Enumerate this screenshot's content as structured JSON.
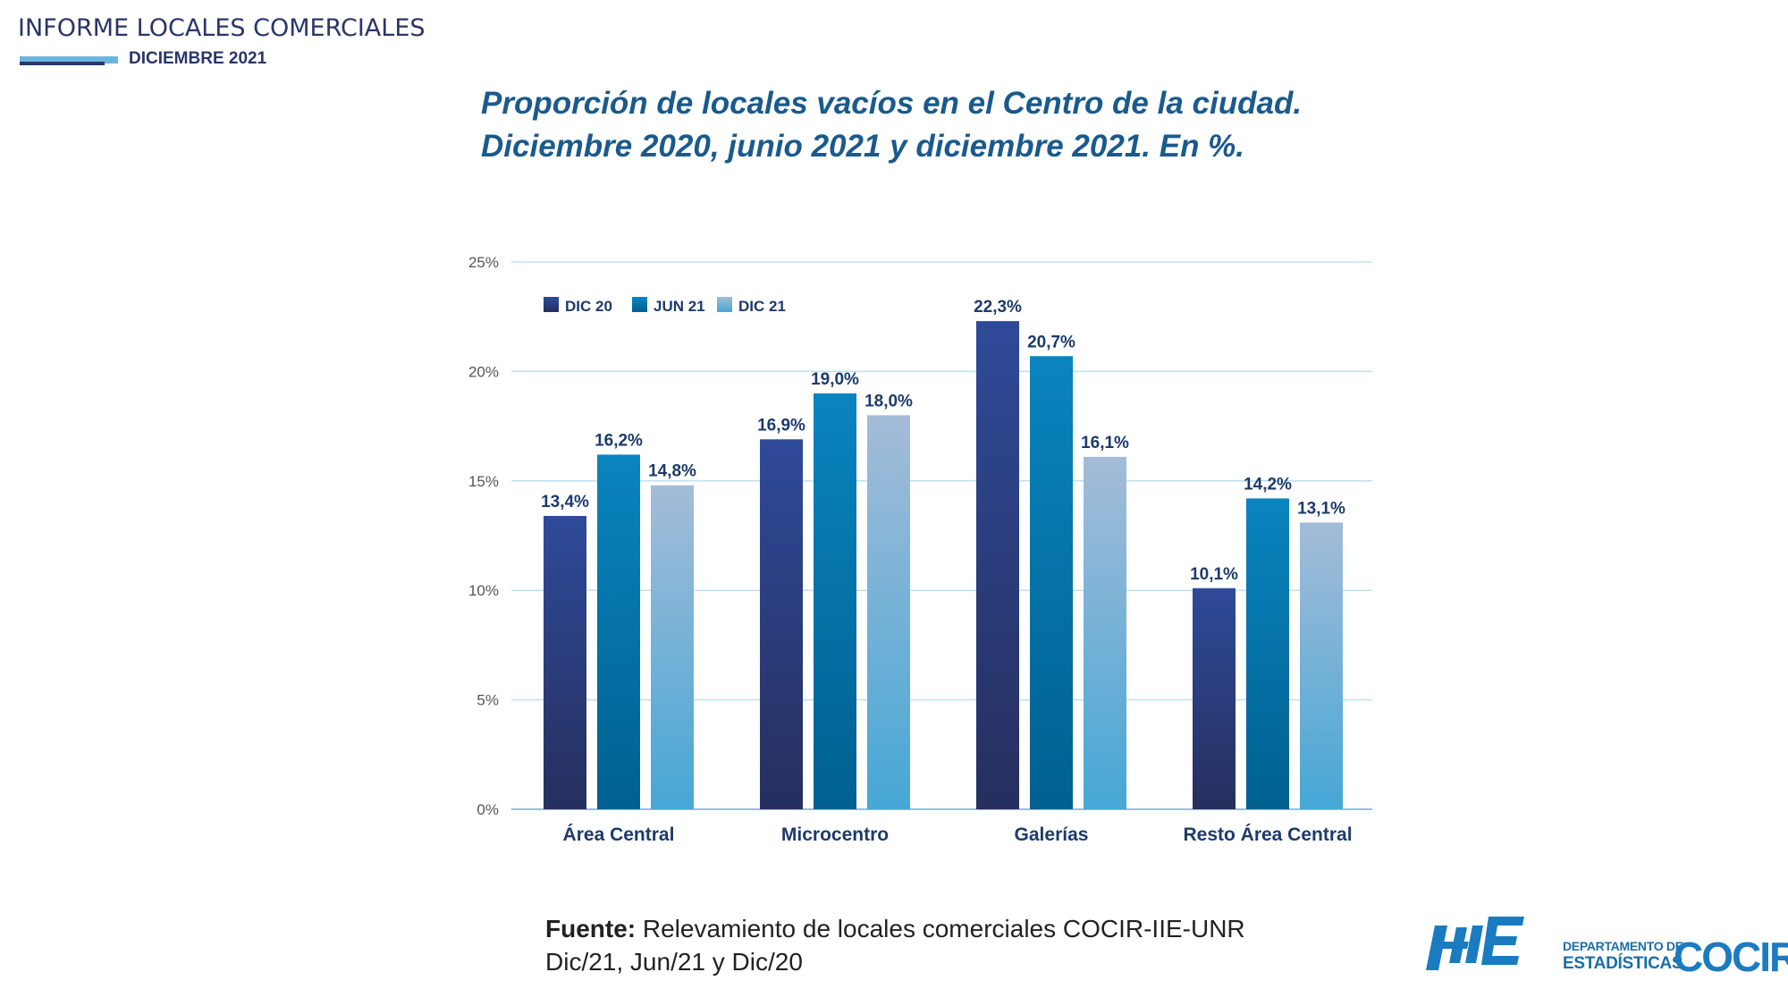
{
  "header": {
    "title": "INFORME LOCALES COMERCIALES",
    "subtitle": "DICIEMBRE 2021"
  },
  "chart_title": {
    "line1": "Proporción de locales vacíos en el Centro de la ciudad.",
    "line2": "Diciembre 2020, junio 2021 y diciembre 2021. En %."
  },
  "chart_data": {
    "type": "bar",
    "categories": [
      "Área Central",
      "Microcentro",
      "Galerías",
      "Resto Área Central"
    ],
    "series": [
      {
        "name": "DIC 20",
        "values": [
          13.4,
          16.9,
          22.3,
          10.1
        ],
        "color": "#2c3a7e"
      },
      {
        "name": "JUN 21",
        "values": [
          16.2,
          19.0,
          20.7,
          14.2
        ],
        "color": "#0077ae"
      },
      {
        "name": "DIC 21",
        "values": [
          14.8,
          18.0,
          16.1,
          13.1
        ],
        "color": "#7fb3da"
      }
    ],
    "data_labels": [
      [
        "13,4%",
        "16,9%",
        "22,3%",
        "10,1%"
      ],
      [
        "16,2%",
        "19,0%",
        "20,7%",
        "14,2%"
      ],
      [
        "14,8%",
        "18,0%",
        "16,1%",
        "13,1%"
      ]
    ],
    "ylim": [
      0,
      25
    ],
    "y_ticks": [
      0,
      5,
      10,
      15,
      20,
      25
    ],
    "y_tick_labels": [
      "0%",
      "5%",
      "10%",
      "15%",
      "20%",
      "25%"
    ],
    "grid": true,
    "legend_position": "top-left"
  },
  "source": {
    "label": "Fuente:",
    "text": "Relevamiento de locales comerciales COCIR-IIE-UNR",
    "line2": "Dic/21, Jun/21 y Dic/20"
  },
  "logos": {
    "iie": "IIE",
    "dept_line1": "DEPARTAMENTO DE",
    "dept_line2": "ESTADÍSTICAS",
    "cocir": "COCIR"
  }
}
